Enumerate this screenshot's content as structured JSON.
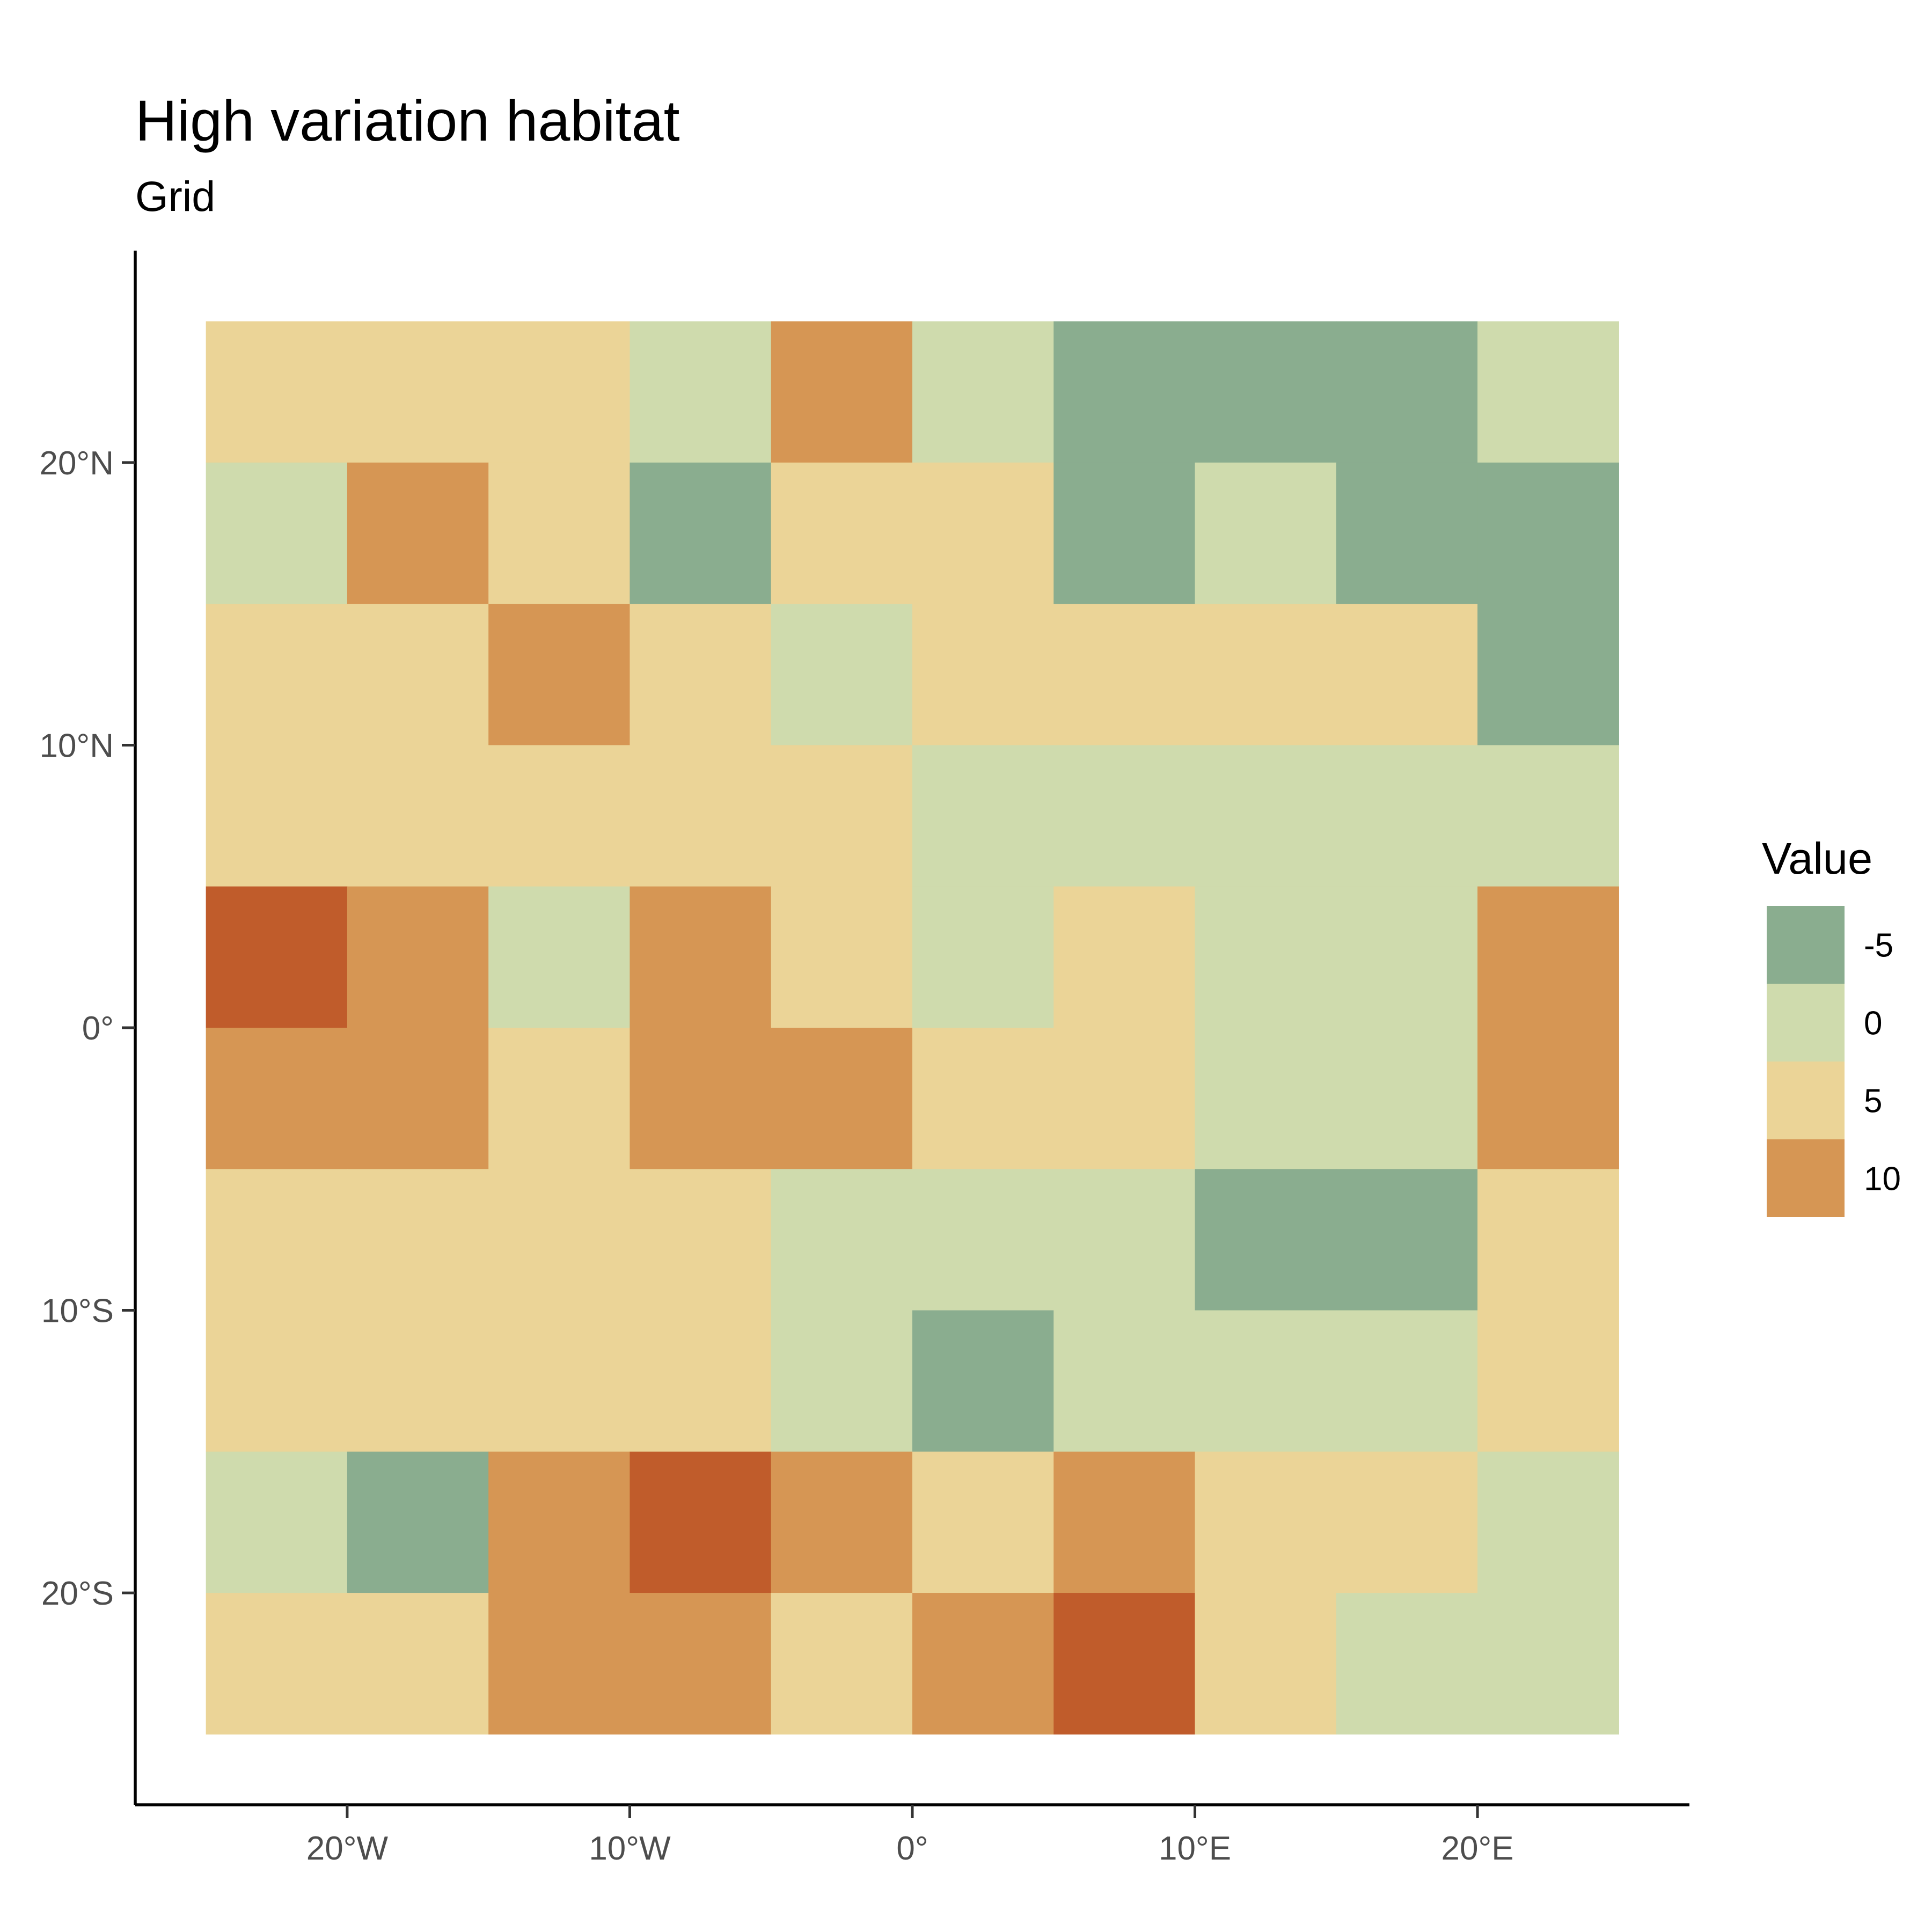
{
  "chart_data": {
    "type": "heatmap",
    "title": "High variation habitat",
    "subtitle": "Grid",
    "xlabel": "",
    "ylabel": "",
    "x_cells": [
      -22.5,
      -17.5,
      -12.5,
      -7.5,
      -2.5,
      2.5,
      7.5,
      12.5,
      17.5,
      22.5
    ],
    "y_cells": [
      22.5,
      17.5,
      12.5,
      7.5,
      2.5,
      -2.5,
      -7.5,
      -12.5,
      -17.5,
      -22.5
    ],
    "values": [
      [
        5,
        5,
        5,
        0,
        10,
        0,
        -5,
        -5,
        -5,
        0
      ],
      [
        0,
        10,
        5,
        -5,
        5,
        5,
        -5,
        0,
        -5,
        -5
      ],
      [
        5,
        5,
        10,
        5,
        0,
        5,
        5,
        5,
        5,
        -5
      ],
      [
        5,
        5,
        5,
        5,
        5,
        0,
        0,
        0,
        0,
        0
      ],
      [
        15,
        10,
        0,
        10,
        5,
        0,
        5,
        0,
        0,
        10
      ],
      [
        10,
        10,
        5,
        10,
        10,
        5,
        5,
        0,
        0,
        10
      ],
      [
        5,
        5,
        5,
        5,
        0,
        0,
        0,
        -5,
        -5,
        5
      ],
      [
        5,
        5,
        5,
        5,
        0,
        -5,
        0,
        0,
        0,
        5
      ],
      [
        0,
        -5,
        10,
        15,
        10,
        5,
        10,
        5,
        5,
        0
      ],
      [
        5,
        5,
        10,
        10,
        5,
        10,
        15,
        5,
        0,
        0
      ]
    ],
    "xlim": [
      -27.5,
      27.5
    ],
    "ylim": [
      -27.5,
      27.5
    ],
    "x_ticks": [
      {
        "value": -20,
        "label": "20°W"
      },
      {
        "value": -10,
        "label": "10°W"
      },
      {
        "value": 0,
        "label": "0°"
      },
      {
        "value": 10,
        "label": "10°E"
      },
      {
        "value": 20,
        "label": "20°E"
      }
    ],
    "y_ticks": [
      {
        "value": 20,
        "label": "20°N"
      },
      {
        "value": 10,
        "label": "10°N"
      },
      {
        "value": 0,
        "label": "0°"
      },
      {
        "value": -10,
        "label": "10°S"
      },
      {
        "value": -20,
        "label": "20°S"
      }
    ],
    "legend": {
      "title": "Value",
      "position": "right",
      "entries": [
        {
          "label": "-5",
          "value": -5
        },
        {
          "label": "0",
          "value": 0
        },
        {
          "label": "5",
          "value": 5
        },
        {
          "label": "10",
          "value": 10
        }
      ]
    },
    "colors": {
      "-5": "#8aad8f",
      "0": "#cfdbad",
      "5": "#ebd497",
      "10": "#d69654",
      "15": "#c05c2b"
    },
    "grid": false
  }
}
